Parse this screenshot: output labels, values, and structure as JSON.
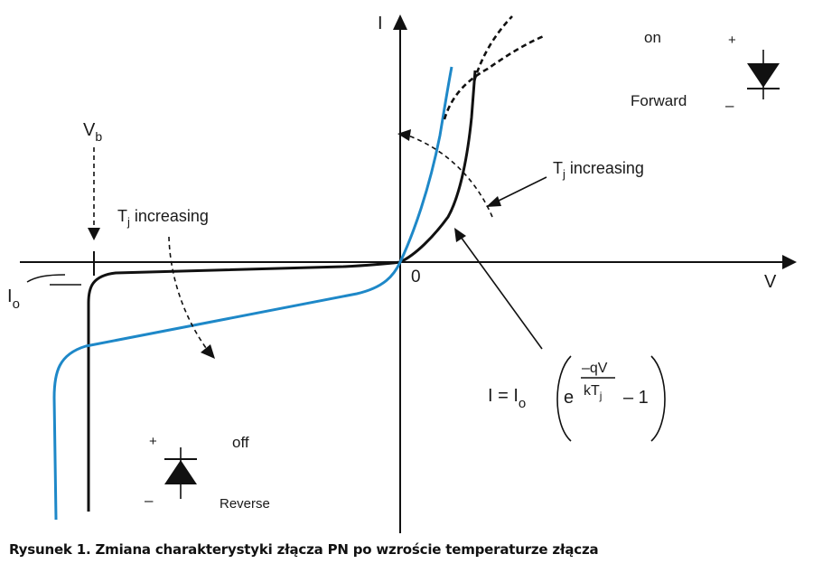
{
  "axes": {
    "y_label": "I",
    "x_label": "V",
    "origin_label": "0"
  },
  "breakdown": {
    "label_main": "V",
    "label_sub": "b"
  },
  "saturation": {
    "label_main": "I",
    "label_sub": "o"
  },
  "forward_region": {
    "state": "on",
    "label": "Forward",
    "plus": "+",
    "minus": "–"
  },
  "reverse_region": {
    "state": "off",
    "label": "Reverse",
    "plus": "+",
    "minus": "–"
  },
  "tj_annotation_forward": {
    "main": "T",
    "sub": "j",
    "rest": " increasing"
  },
  "tj_annotation_reverse": {
    "main": "T",
    "sub": "j",
    "rest": " increasing"
  },
  "equation": {
    "lhs": "I = I",
    "lhs_sub": "o",
    "base": "e",
    "numerator": "–qV",
    "denominator": "kT",
    "denominator_sub": "j",
    "tail": "– 1"
  },
  "colors": {
    "curve_low_temp": "#111111",
    "curve_high_temp": "#1e88c8"
  },
  "caption": "Rysunek 1. Zmiana charakterystyki złącza PN po wzroście temperaturze złącza"
}
